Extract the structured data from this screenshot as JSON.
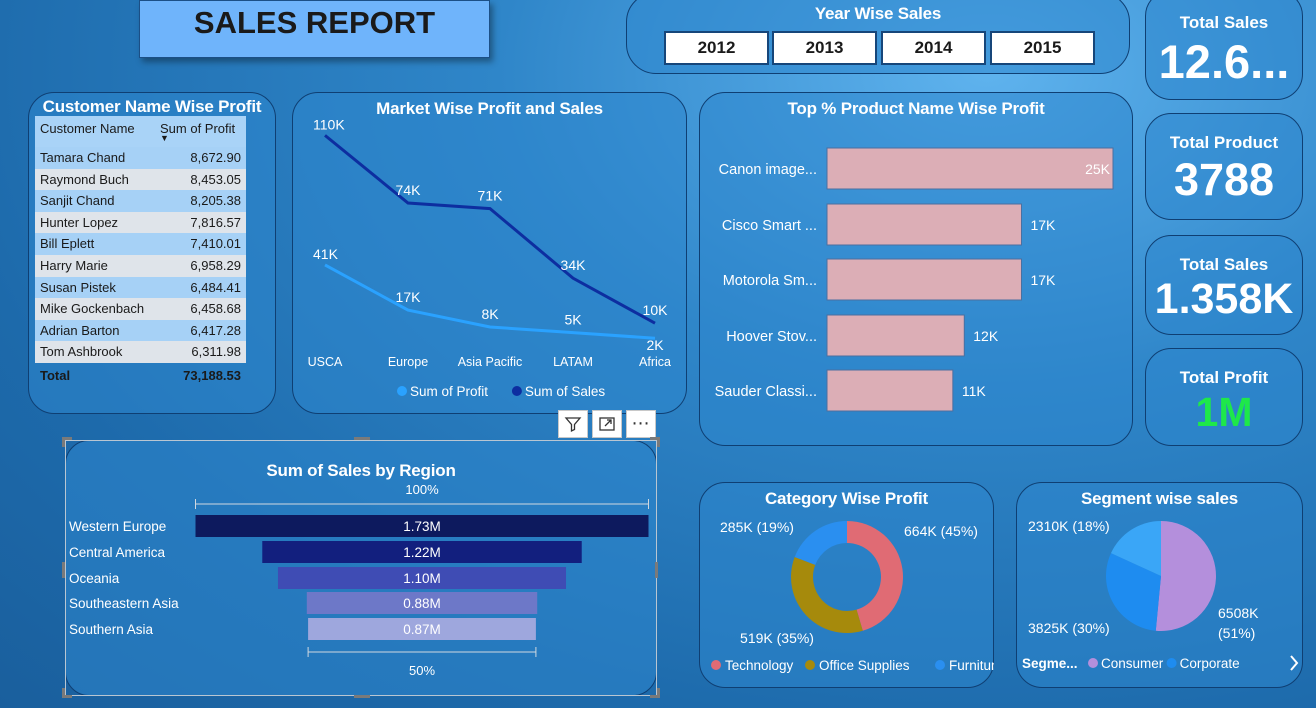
{
  "title": "SALES REPORT",
  "year_slicer": {
    "title": "Year Wise Sales",
    "years": [
      "2012",
      "2013",
      "2014",
      "2015"
    ]
  },
  "kpis": {
    "total_sales_1": {
      "label": "Total Sales",
      "value": "12.6..."
    },
    "total_product": {
      "label": "Total Product",
      "value": "3788"
    },
    "total_sales_2": {
      "label": "Total Sales",
      "value": "1.358K"
    },
    "total_profit": {
      "label": "Total Profit",
      "value": "1M",
      "color": "#1ee84a"
    }
  },
  "customer_table": {
    "title": "Customer Name Wise Profit",
    "columns": [
      "Customer Name",
      "Sum of Profit"
    ],
    "rows": [
      [
        "Tamara Chand",
        "8,672.90"
      ],
      [
        "Raymond Buch",
        "8,453.05"
      ],
      [
        "Sanjit Chand",
        "8,205.38"
      ],
      [
        "Hunter Lopez",
        "7,816.57"
      ],
      [
        "Bill Eplett",
        "7,410.01"
      ],
      [
        "Harry Marie",
        "6,958.29"
      ],
      [
        "Susan Pistek",
        "6,484.41"
      ],
      [
        "Mike Gockenbach",
        "6,458.68"
      ],
      [
        "Adrian Barton",
        "6,417.28"
      ],
      [
        "Tom Ashbrook",
        "6,311.98"
      ]
    ],
    "total_label": "Total",
    "total_value": "73,188.53"
  },
  "chart_data": [
    {
      "type": "line",
      "title": "Market Wise Profit and Sales",
      "categories": [
        "USCA",
        "Europe",
        "Asia Pacific",
        "LATAM",
        "Africa"
      ],
      "series": [
        {
          "name": "Sum of Profit",
          "values": [
            41,
            17,
            8,
            5,
            2
          ],
          "labels": [
            "41K",
            "17K",
            "8K",
            "5K",
            "2K"
          ],
          "color": "#2aa2ff"
        },
        {
          "name": "Sum of Sales",
          "values": [
            110,
            74,
            71,
            34,
            10
          ],
          "labels": [
            "110K",
            "74K",
            "71K",
            "34K",
            "10K"
          ],
          "color": "#0d2ea0"
        }
      ],
      "ylim": [
        0,
        115
      ]
    },
    {
      "type": "bar",
      "title": "Top % Product Name Wise Profit",
      "categories": [
        "Canon image...",
        "Cisco Smart ...",
        "Motorola Sm...",
        "Hoover Stov...",
        "Sauder Classi..."
      ],
      "values": [
        25,
        17,
        17,
        12,
        11
      ],
      "labels": [
        "25K",
        "17K",
        "17K",
        "12K",
        "11K"
      ],
      "color": "#dcaeb6"
    },
    {
      "type": "bar",
      "title": "Sum of Sales by Region",
      "categories": [
        "Western Europe",
        "Central America",
        "Oceania",
        "Southeastern Asia",
        "Southern Asia"
      ],
      "values": [
        1.73,
        1.22,
        1.1,
        0.88,
        0.87
      ],
      "labels": [
        "1.73M",
        "1.22M",
        "1.10M",
        "0.88M",
        "0.87M"
      ],
      "colors": [
        "#0d1a5e",
        "#121f7e",
        "#3f4cb4",
        "#6d78c8",
        "#9ea7dd"
      ],
      "top_percent": "100%",
      "bottom_percent": "50%"
    },
    {
      "type": "pie",
      "title": "Category Wise Profit",
      "donut": true,
      "slices": [
        {
          "name": "Technology",
          "value": 45,
          "label": "664K (45%)",
          "color": "#e06b74"
        },
        {
          "name": "Office Supplies",
          "value": 35,
          "label": "519K (35%)",
          "color": "#a68a0c"
        },
        {
          "name": "Furniture",
          "value": 19,
          "label": "285K (19%)",
          "color": "#2a8ff0"
        }
      ]
    },
    {
      "type": "pie",
      "title": "Segment wise sales",
      "legend_title": "Segme...",
      "slices": [
        {
          "name": "Consumer",
          "value": 51,
          "label": "6508K (51%)",
          "color": "#b48fdc"
        },
        {
          "name": "Corporate",
          "value": 30,
          "label": "3825K (30%)",
          "color": "#1e8cf0"
        },
        {
          "name": "",
          "value": 18,
          "label": "2310K (18%)",
          "color": "#3aa6f7"
        }
      ]
    }
  ],
  "toolbar": {
    "filter_icon": "filter-icon",
    "focus_icon": "focus-mode-icon",
    "more_icon": "more-options-icon",
    "more_label": "⋯"
  }
}
